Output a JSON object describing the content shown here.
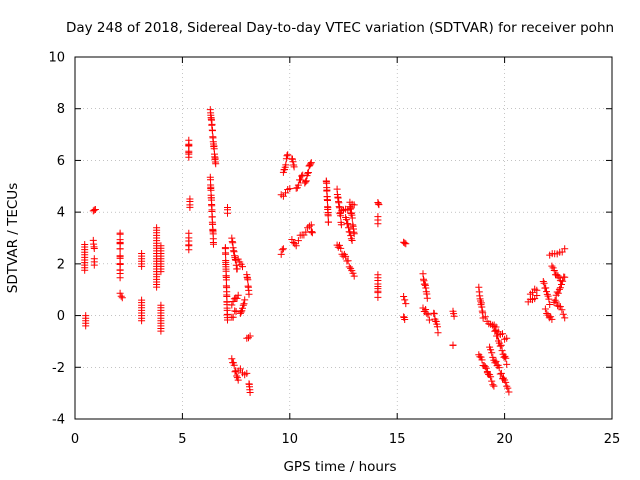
{
  "chart_data": {
    "type": "scatter",
    "title": "Day 248 of 2018, Sidereal Day-to-day VTEC variation (SDTVAR) for receiver pohn",
    "xlabel": "GPS time / hours",
    "ylabel": "SDTVAR / TECUs",
    "xlim": [
      0,
      25
    ],
    "ylim": [
      -4,
      10
    ],
    "xticks": [
      "0",
      "5",
      "10",
      "15",
      "20",
      "25"
    ],
    "yticks": [
      "-4",
      "-2",
      "0",
      "2",
      "4",
      "6",
      "8",
      "10"
    ],
    "grid": true,
    "marker": "+",
    "series_color": "#ff0000",
    "segments": [
      [
        0.45,
        2.75,
        0.45,
        1.75,
        0.0
      ],
      [
        0.5,
        0.0,
        0.5,
        -0.4,
        0.0
      ],
      [
        0.85,
        4.05,
        0.95,
        4.1,
        0.05
      ],
      [
        0.85,
        2.9,
        0.9,
        2.6,
        0.05
      ],
      [
        0.9,
        2.2,
        0.9,
        1.95,
        0.0
      ],
      [
        2.1,
        3.2,
        2.1,
        1.5,
        0.1
      ],
      [
        2.1,
        0.85,
        2.2,
        0.7,
        0.05
      ],
      [
        3.1,
        2.4,
        3.1,
        1.9,
        0.0
      ],
      [
        3.1,
        0.6,
        3.1,
        -0.2,
        0.0
      ],
      [
        3.8,
        3.4,
        3.8,
        1.1,
        0.0
      ],
      [
        4.0,
        2.7,
        4.0,
        1.7,
        0.0
      ],
      [
        4.0,
        0.4,
        4.0,
        -0.6,
        0.0
      ],
      [
        5.3,
        6.8,
        5.3,
        6.1,
        0.1
      ],
      [
        5.35,
        4.5,
        5.35,
        4.2,
        0.05
      ],
      [
        5.3,
        3.1,
        5.3,
        2.6,
        0.1
      ],
      [
        6.3,
        8.0,
        6.55,
        5.8,
        0.1
      ],
      [
        6.3,
        5.3,
        6.45,
        2.8,
        0.1
      ],
      [
        7.1,
        4.2,
        7.1,
        4.0,
        0.05
      ],
      [
        7.0,
        2.6,
        7.1,
        -0.2,
        0.1
      ],
      [
        7.3,
        3.0,
        7.55,
        1.8,
        0.1
      ],
      [
        7.3,
        0.4,
        7.6,
        0.85,
        0.1
      ],
      [
        7.3,
        -0.1,
        7.5,
        0.2,
        0.1
      ],
      [
        7.3,
        -1.7,
        7.6,
        -2.5,
        0.1
      ],
      [
        7.6,
        -2.1,
        8.0,
        -2.3,
        0.1
      ],
      [
        7.6,
        2.1,
        7.8,
        1.9,
        0.1
      ],
      [
        7.7,
        0.0,
        7.9,
        0.6,
        0.1
      ],
      [
        8.0,
        1.6,
        8.1,
        0.9,
        0.1
      ],
      [
        8.0,
        -0.8,
        8.15,
        -0.8,
        0.1
      ],
      [
        8.1,
        -2.6,
        8.15,
        -3.0,
        0.05
      ],
      [
        9.7,
        5.5,
        9.9,
        6.2,
        0.1
      ],
      [
        9.6,
        4.6,
        10.0,
        4.9,
        0.1
      ],
      [
        9.6,
        2.4,
        9.7,
        2.6,
        0.05
      ],
      [
        10.1,
        6.1,
        10.2,
        5.7,
        0.05
      ],
      [
        10.1,
        2.9,
        10.3,
        2.7,
        0.05
      ],
      [
        10.3,
        4.9,
        10.6,
        5.5,
        0.1
      ],
      [
        10.4,
        3.0,
        11.0,
        3.5,
        0.1
      ],
      [
        10.7,
        5.1,
        11.0,
        6.0,
        0.1
      ],
      [
        11.0,
        3.2,
        11.05,
        3.2,
        0.05
      ],
      [
        11.7,
        5.3,
        11.8,
        3.6,
        0.1
      ],
      [
        12.2,
        4.8,
        12.4,
        3.6,
        0.1
      ],
      [
        12.4,
        4.0,
        13.0,
        4.3,
        0.1
      ],
      [
        12.2,
        2.8,
        13.0,
        1.6,
        0.1
      ],
      [
        12.6,
        3.8,
        12.9,
        2.9,
        0.1
      ],
      [
        12.8,
        4.3,
        13.0,
        3.2,
        0.1
      ],
      [
        14.1,
        4.35,
        14.15,
        4.3,
        0.05
      ],
      [
        14.1,
        3.8,
        14.1,
        3.6,
        0.05
      ],
      [
        14.1,
        1.55,
        14.1,
        0.75,
        0.05
      ],
      [
        15.3,
        2.8,
        15.4,
        2.75,
        0.05
      ],
      [
        15.3,
        0.7,
        15.4,
        0.5,
        0.05
      ],
      [
        15.3,
        0.0,
        15.35,
        -0.15,
        0.05
      ],
      [
        16.2,
        1.6,
        16.4,
        0.7,
        0.1
      ],
      [
        16.2,
        0.3,
        16.5,
        -0.1,
        0.1
      ],
      [
        16.7,
        0.1,
        16.9,
        -0.6,
        0.1
      ],
      [
        17.6,
        0.2,
        17.65,
        0.0,
        0.05
      ],
      [
        17.6,
        -1.15,
        17.6,
        -1.15,
        0.0
      ],
      [
        18.8,
        1.0,
        19.0,
        0.0,
        0.1
      ],
      [
        18.8,
        -1.5,
        19.2,
        -2.2,
        0.1
      ],
      [
        19.1,
        -0.1,
        19.6,
        -0.5,
        0.1
      ],
      [
        19.2,
        -2.1,
        19.5,
        -2.7,
        0.1
      ],
      [
        19.3,
        -1.3,
        20.2,
        -2.9,
        0.1
      ],
      [
        19.5,
        -0.5,
        20.1,
        -1.8,
        0.1
      ],
      [
        19.6,
        -0.6,
        20.1,
        -0.9,
        0.1
      ],
      [
        21.2,
        0.8,
        21.5,
        1.0,
        0.1
      ],
      [
        21.1,
        0.5,
        21.5,
        0.7,
        0.1
      ],
      [
        21.8,
        1.3,
        22.1,
        0.5,
        0.1
      ],
      [
        21.9,
        0.2,
        22.2,
        -0.2,
        0.1
      ],
      [
        22.1,
        2.3,
        22.8,
        2.5,
        0.1
      ],
      [
        22.2,
        1.9,
        22.6,
        1.3,
        0.1
      ],
      [
        22.3,
        0.6,
        22.8,
        1.5,
        0.1
      ],
      [
        22.4,
        0.5,
        22.8,
        0.0,
        0.1
      ]
    ]
  }
}
